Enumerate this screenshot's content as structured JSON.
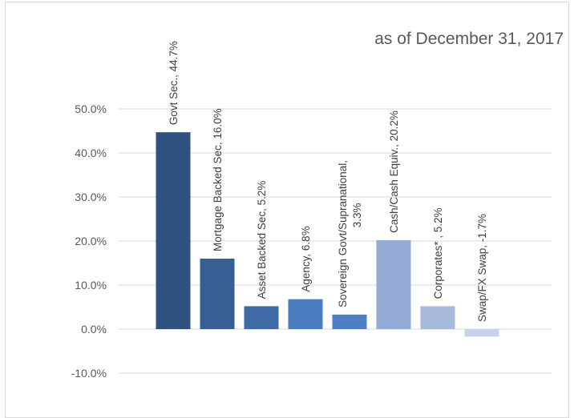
{
  "chart_data": {
    "type": "bar",
    "title": "as of December 31, 2017",
    "xlabel": "",
    "ylabel": "",
    "ylim": [
      -0.1,
      0.5
    ],
    "y_ticks": [
      -0.1,
      0.0,
      0.1,
      0.2,
      0.3,
      0.4,
      0.5
    ],
    "y_tick_labels": [
      "-10.0%",
      "0.0%",
      "10.0%",
      "20.0%",
      "30.0%",
      "40.0%",
      "50.0%"
    ],
    "grid": true,
    "legend": "none",
    "categories": [
      "Govt Sec.",
      "Mortgage Backed Sec",
      "Asset Backed Sec",
      "Agency",
      "Sovereign Govt/Supranational",
      "Cash/Cash Equiv.",
      "Corporates*",
      "Swap/FX Swap"
    ],
    "values": [
      0.447,
      0.16,
      0.052,
      0.068,
      0.033,
      0.202,
      0.052,
      -0.017
    ],
    "data_labels": [
      [
        "Govt Sec., 44.7%"
      ],
      [
        "Mortgage Backed Sec, 16.0%"
      ],
      [
        "Asset Backed Sec, 5.2%"
      ],
      [
        "Agency, 6.8%"
      ],
      [
        "Sovereign Govt/Supranational,",
        "3.3%"
      ],
      [
        "Cash/Cash Equiv., 20.2%"
      ],
      [
        "Corporates* , 5.2%"
      ],
      [
        "Swap/FX Swap, -1.7%"
      ]
    ],
    "colors": [
      "#2f5281",
      "#375f94",
      "#3e6aa6",
      "#4a7cbf",
      "#4e7fc4",
      "#92aad4",
      "#a7badb",
      "#c6d2ea"
    ],
    "gridline_color": "#d9d9d9"
  }
}
